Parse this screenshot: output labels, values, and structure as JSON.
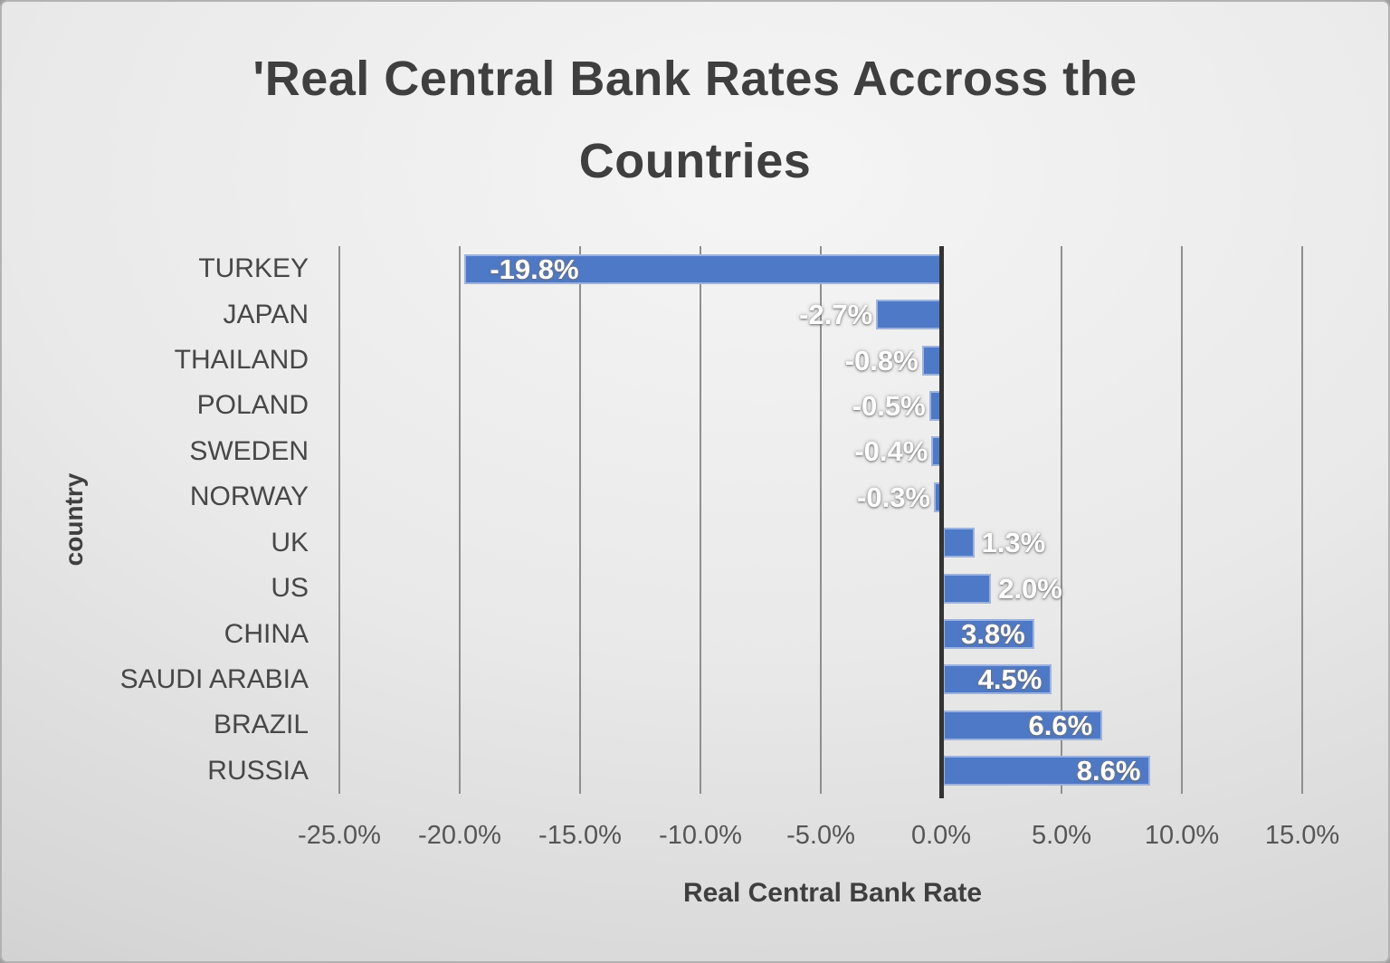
{
  "title": "'Real Central Bank Rates Accross the Countries",
  "chart_data": {
    "type": "bar",
    "orientation": "horizontal",
    "title": "'Real Central Bank Rates Accross the Countries",
    "xlabel": "Real Central Bank Rate",
    "ylabel": "country",
    "categories": [
      "TURKEY",
      "JAPAN",
      "THAILAND",
      "POLAND",
      "SWEDEN",
      "NORWAY",
      "UK",
      "US",
      "CHINA",
      "SAUDI ARABIA",
      "BRAZIL",
      "RUSSIA"
    ],
    "values": [
      -19.8,
      -2.7,
      -0.8,
      -0.5,
      -0.4,
      -0.3,
      1.3,
      2.0,
      3.8,
      4.5,
      6.6,
      8.6
    ],
    "value_labels": [
      "-19.8%",
      "-2.7%",
      "-0.8%",
      "-0.5%",
      "-0.4%",
      "-0.3%",
      "1.3%",
      "2.0%",
      "3.8%",
      "4.5%",
      "6.6%",
      "8.6%"
    ],
    "xlim": [
      -25,
      15
    ],
    "x_tick_values": [
      -25,
      -20,
      -15,
      -10,
      -5,
      0,
      5,
      10,
      15
    ],
    "x_tick_labels": [
      "-25.0%",
      "-20.0%",
      "-15.0%",
      "-10.0%",
      "-5.0%",
      "0.0%",
      "5.0%",
      "10.0%",
      "15.0%"
    ],
    "grid": true,
    "legend": "none",
    "colors": {
      "bar_fill": "#4e79c7",
      "bar_border": "#9db3de",
      "gridline": "#8f8f8f",
      "zero_axis": "#333333",
      "value_label_text": "#ffffff",
      "title_text": "#3f3f3f",
      "tick_text": "#565656",
      "background_light": "#f5f5f5",
      "background_dark": "#c3c3c3"
    }
  }
}
